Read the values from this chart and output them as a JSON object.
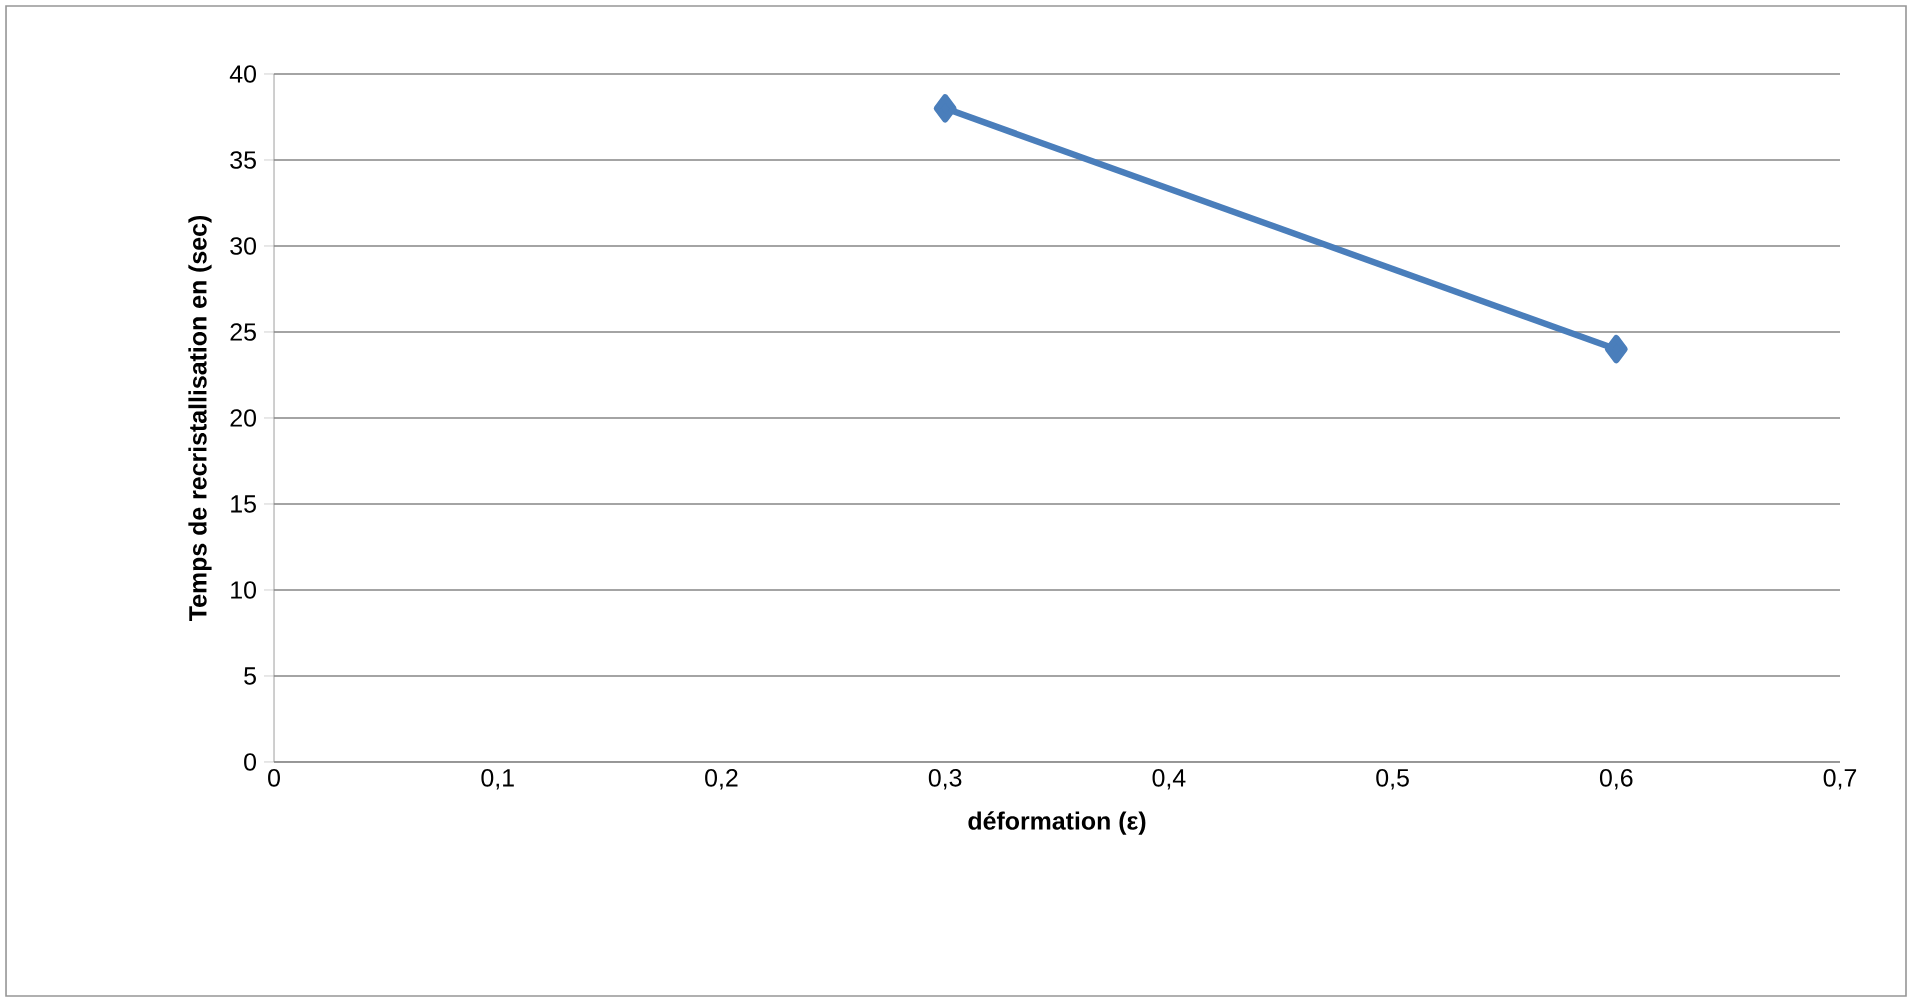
{
  "chart_data": {
    "type": "line",
    "xlabel": "déformation (ε)",
    "ylabel": "Temps de recristallisation en (sec)",
    "x": [
      0.3,
      0.6
    ],
    "series": [
      {
        "color": "#4a7ebb",
        "values": [
          38,
          24
        ]
      }
    ],
    "xlim": [
      0,
      0.7
    ],
    "xticks": [
      0,
      {
        "value": 0.1,
        "label": "0,1"
      },
      {
        "value": 0.2,
        "label": "0,2"
      },
      {
        "value": 0.3,
        "label": "0,3"
      },
      {
        "value": 0.4,
        "label": "0,4"
      },
      {
        "value": 0.5,
        "label": "0,5"
      },
      {
        "value": 0.6,
        "label": "0,6"
      },
      {
        "value": 0.7,
        "label": "0,7"
      }
    ],
    "ylim": [
      0,
      40
    ],
    "yticks": [
      0,
      5,
      10,
      15,
      20,
      25,
      30,
      35,
      40
    ],
    "grid": "y",
    "legend": false,
    "marker": "diamond",
    "line_style": "solid"
  }
}
